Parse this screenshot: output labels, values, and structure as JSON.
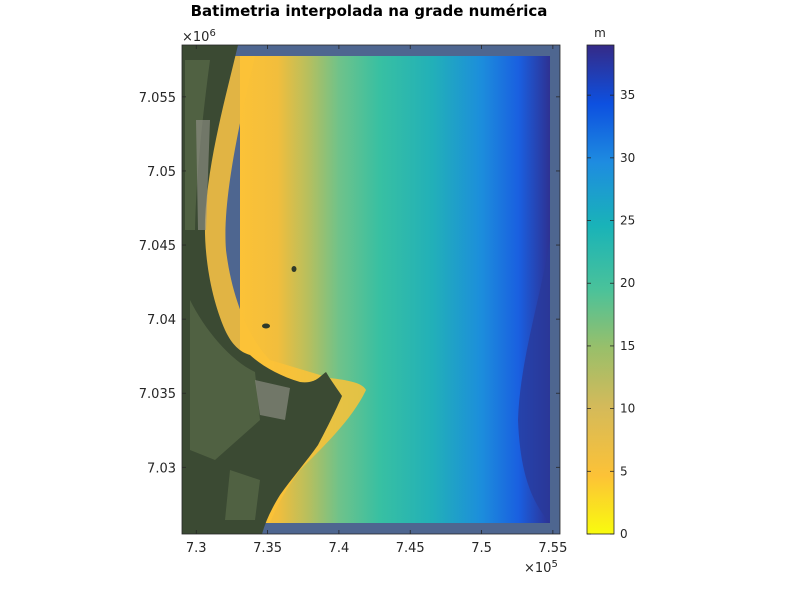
{
  "chart_data": {
    "type": "heatmap",
    "title": "Batimetria interpolada na grade numérica",
    "xlabel": "",
    "ylabel": "",
    "x_multiplier": "×10",
    "x_multiplier_exp": "5",
    "y_multiplier": "×10",
    "y_multiplier_exp": "6",
    "xlim": [
      7.29,
      7.555
    ],
    "ylim": [
      7.0255,
      7.0585
    ],
    "x_ticks": [
      7.3,
      7.35,
      7.4,
      7.45,
      7.5,
      7.55
    ],
    "x_tick_labels": [
      "7.3",
      "7.35",
      "7.4",
      "7.45",
      "7.5",
      "7.55"
    ],
    "y_ticks": [
      7.03,
      7.035,
      7.04,
      7.045,
      7.05,
      7.055
    ],
    "y_tick_labels": [
      "7.03",
      "7.035",
      "7.04",
      "7.045",
      "7.05",
      "7.055"
    ],
    "colorbar": {
      "label": "m",
      "range": [
        0,
        39
      ],
      "ticks": [
        0,
        5,
        10,
        15,
        20,
        25,
        30,
        35
      ],
      "tick_labels": [
        "0",
        "5",
        "10",
        "15",
        "20",
        "25",
        "30",
        "35"
      ],
      "colormap": [
        "#f9fb0e",
        "#fcc237",
        "#d4ba5a",
        "#99bf6a",
        "#4ac29a",
        "#19b3b8",
        "#1e8ce0",
        "#0d50e0",
        "#352a87"
      ]
    },
    "background": "satellite image of coastline (land shown in dark green/grey)",
    "grid": false,
    "depth_profile_by_x": [
      {
        "x": 7.32,
        "depth": 2
      },
      {
        "x": 7.35,
        "depth": 12
      },
      {
        "x": 7.4,
        "depth": 19
      },
      {
        "x": 7.45,
        "depth": 22
      },
      {
        "x": 7.5,
        "depth": 28
      },
      {
        "x": 7.545,
        "depth": 37
      }
    ]
  }
}
